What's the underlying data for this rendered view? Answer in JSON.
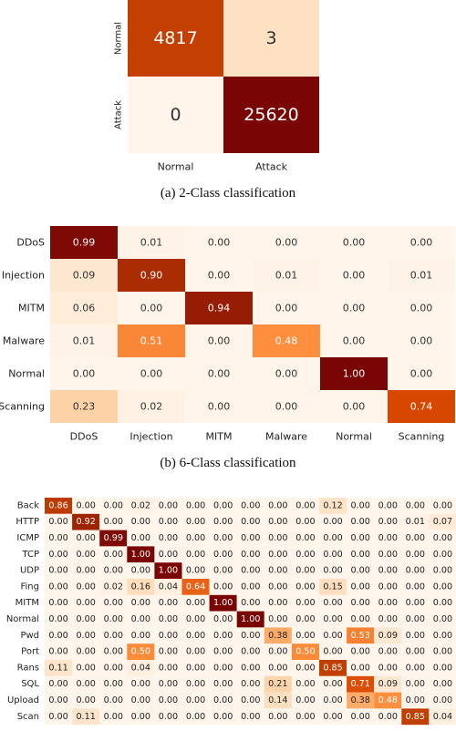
{
  "chart_data": [
    {
      "type": "heatmap",
      "caption": "(a) 2-Class classification",
      "row_labels": [
        "Normal",
        "Attack"
      ],
      "col_labels": [
        "Normal",
        "Attack"
      ],
      "values": [
        [
          4817,
          3
        ],
        [
          0,
          25620
        ]
      ],
      "display": [
        [
          "4817",
          "3"
        ],
        [
          "0",
          "25620"
        ]
      ],
      "color_scale": "log counts"
    },
    {
      "type": "heatmap",
      "caption": "(b) 6-Class classification",
      "row_labels": [
        "DDoS",
        "Injection",
        "MITM",
        "Malware",
        "Normal",
        "Scanning"
      ],
      "col_labels": [
        "DDoS",
        "Injection",
        "MITM",
        "Malware",
        "Normal",
        "Scanning"
      ],
      "values": [
        [
          0.99,
          0.01,
          0.0,
          0.0,
          0.0,
          0.0
        ],
        [
          0.09,
          0.9,
          0.0,
          0.01,
          0.0,
          0.01
        ],
        [
          0.06,
          0.0,
          0.94,
          0.0,
          0.0,
          0.0
        ],
        [
          0.01,
          0.51,
          0.0,
          0.48,
          0.0,
          0.0
        ],
        [
          0.0,
          0.0,
          0.0,
          0.0,
          1.0,
          0.0
        ],
        [
          0.23,
          0.02,
          0.0,
          0.0,
          0.0,
          0.74
        ]
      ]
    },
    {
      "type": "heatmap",
      "caption": "",
      "row_labels": [
        "Back",
        "HTTP",
        "ICMP",
        "TCP",
        "UDP",
        "Fing",
        "MITM",
        "Normal",
        "Pwd",
        "Port",
        "Rans",
        "SQL",
        "Upload",
        "Scan"
      ],
      "col_labels": [],
      "values": [
        [
          0.86,
          0.0,
          0.0,
          0.02,
          0.0,
          0.0,
          0.0,
          0.0,
          0.0,
          0.0,
          0.12,
          0.0,
          0.0,
          0.0,
          0.0
        ],
        [
          0.0,
          0.92,
          0.0,
          0.0,
          0.0,
          0.0,
          0.0,
          0.0,
          0.0,
          0.0,
          0.0,
          0.0,
          0.0,
          0.01,
          0.07
        ],
        [
          0.0,
          0.0,
          0.99,
          0.0,
          0.0,
          0.0,
          0.0,
          0.0,
          0.0,
          0.0,
          0.0,
          0.0,
          0.0,
          0.0,
          0.0
        ],
        [
          0.0,
          0.0,
          0.0,
          1.0,
          0.0,
          0.0,
          0.0,
          0.0,
          0.0,
          0.0,
          0.0,
          0.0,
          0.0,
          0.0,
          0.0
        ],
        [
          0.0,
          0.0,
          0.0,
          0.0,
          1.0,
          0.0,
          0.0,
          0.0,
          0.0,
          0.0,
          0.0,
          0.0,
          0.0,
          0.0,
          0.0
        ],
        [
          0.0,
          0.0,
          0.02,
          0.16,
          0.04,
          0.64,
          0.0,
          0.0,
          0.0,
          0.0,
          0.15,
          0.0,
          0.0,
          0.0,
          0.0
        ],
        [
          0.0,
          0.0,
          0.0,
          0.0,
          0.0,
          0.0,
          1.0,
          0.0,
          0.0,
          0.0,
          0.0,
          0.0,
          0.0,
          0.0,
          0.0
        ],
        [
          0.0,
          0.0,
          0.0,
          0.0,
          0.0,
          0.0,
          0.0,
          1.0,
          0.0,
          0.0,
          0.0,
          0.0,
          0.0,
          0.0,
          0.0
        ],
        [
          0.0,
          0.0,
          0.0,
          0.0,
          0.0,
          0.0,
          0.0,
          0.0,
          0.38,
          0.0,
          0.0,
          0.53,
          0.09,
          0.0,
          0.0
        ],
        [
          0.0,
          0.0,
          0.0,
          0.5,
          0.0,
          0.0,
          0.0,
          0.0,
          0.0,
          0.5,
          0.0,
          0.0,
          0.0,
          0.0,
          0.0
        ],
        [
          0.11,
          0.0,
          0.0,
          0.04,
          0.0,
          0.0,
          0.0,
          0.0,
          0.0,
          0.0,
          0.85,
          0.0,
          0.0,
          0.0,
          0.0
        ],
        [
          0.0,
          0.0,
          0.0,
          0.0,
          0.0,
          0.0,
          0.0,
          0.0,
          0.21,
          0.0,
          0.0,
          0.71,
          0.09,
          0.0,
          0.0
        ],
        [
          0.0,
          0.0,
          0.0,
          0.0,
          0.0,
          0.0,
          0.0,
          0.0,
          0.14,
          0.0,
          0.0,
          0.38,
          0.48,
          0.0,
          0.0
        ],
        [
          0.0,
          0.11,
          0.0,
          0.0,
          0.0,
          0.0,
          0.0,
          0.0,
          0.0,
          0.0,
          0.0,
          0.0,
          0.0,
          0.85,
          0.04
        ]
      ]
    }
  ]
}
